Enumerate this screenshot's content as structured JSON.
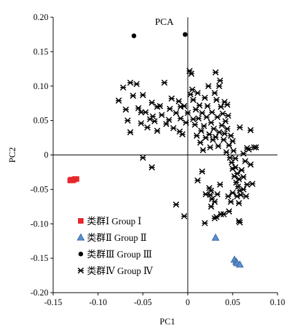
{
  "chart_data": {
    "type": "scatter",
    "title": "PCA",
    "xlabel": "PC1",
    "ylabel": "PC2",
    "xlim": [
      -0.15,
      0.1
    ],
    "ylim": [
      -0.2,
      0.2
    ],
    "x_ticks": [
      -0.15,
      -0.1,
      -0.05,
      0,
      0.05,
      0.1
    ],
    "y_ticks": [
      -0.2,
      -0.15,
      -0.1,
      -0.05,
      0,
      0.05,
      0.1,
      0.15,
      0.2
    ],
    "x_tick_labels": [
      "-0.15",
      "-0.10",
      "-0.05",
      "0",
      "0.05",
      "0.10"
    ],
    "y_tick_labels": [
      "-0.20",
      "-0.15",
      "-0.10",
      "-0.05",
      "0",
      "0.05",
      "0.10",
      "0.15",
      "0.20"
    ],
    "grid": false,
    "legend_position": "lower-left",
    "series": [
      {
        "name": "类群Ⅰ Group Ⅰ",
        "marker": "square",
        "color": "#e8262b",
        "points": [
          [
            -0.131,
            -0.037
          ],
          [
            -0.129,
            -0.036
          ],
          [
            -0.127,
            -0.036
          ],
          [
            -0.125,
            -0.035
          ],
          [
            -0.13,
            -0.036
          ],
          [
            -0.126,
            -0.035
          ],
          [
            -0.128,
            -0.037
          ],
          [
            -0.124,
            -0.035
          ]
        ]
      },
      {
        "name": "类群Ⅱ Group Ⅱ",
        "marker": "triangle",
        "color": "#5b8fd0",
        "points": [
          [
            0.031,
            -0.12
          ],
          [
            0.052,
            -0.152
          ],
          [
            0.054,
            -0.155
          ],
          [
            0.055,
            -0.157
          ],
          [
            0.058,
            -0.159
          ]
        ]
      },
      {
        "name": "类群Ⅲ Group Ⅲ",
        "marker": "circle",
        "color": "#000000",
        "points": [
          [
            -0.06,
            0.173
          ],
          [
            -0.003,
            0.175
          ]
        ]
      },
      {
        "name": "类群Ⅳ Group Ⅳ",
        "marker": "asterisk",
        "color": "#000000",
        "points": [
          [
            -0.077,
            0.079
          ],
          [
            -0.072,
            0.098
          ],
          [
            -0.069,
            0.066
          ],
          [
            -0.064,
            0.105
          ],
          [
            -0.061,
            0.086
          ],
          [
            -0.057,
            0.103
          ],
          [
            -0.055,
            0.068
          ],
          [
            -0.052,
            0.046
          ],
          [
            -0.05,
            0.087
          ],
          [
            -0.047,
            0.062
          ],
          [
            -0.045,
            0.04
          ],
          [
            -0.042,
            0.052
          ],
          [
            -0.04,
            0.076
          ],
          [
            -0.037,
            0.049
          ],
          [
            -0.034,
            0.035
          ],
          [
            -0.031,
            0.071
          ],
          [
            -0.029,
            0.058
          ],
          [
            -0.026,
            0.105
          ],
          [
            -0.024,
            0.045
          ],
          [
            -0.02,
            0.067
          ],
          [
            -0.018,
            0.082
          ],
          [
            -0.016,
            0.039
          ],
          [
            -0.013,
            0.061
          ],
          [
            -0.01,
            0.078
          ],
          [
            -0.008,
            0.053
          ],
          [
            -0.006,
            0.03
          ],
          [
            -0.004,
            0.071
          ],
          [
            -0.002,
            0.047
          ],
          [
            0.0,
            0.061
          ],
          [
            0.002,
            0.122
          ],
          [
            0.004,
            0.118
          ],
          [
            0.005,
            0.095
          ],
          [
            0.006,
            0.08
          ],
          [
            0.008,
            0.044
          ],
          [
            0.009,
            0.066
          ],
          [
            0.01,
            0.028
          ],
          [
            0.011,
            0.09
          ],
          [
            0.012,
            0.053
          ],
          [
            0.013,
            0.072
          ],
          [
            0.014,
            0.018
          ],
          [
            0.015,
            0.035
          ],
          [
            0.016,
            0.061
          ],
          [
            0.017,
            0.007
          ],
          [
            0.018,
            0.042
          ],
          [
            0.019,
            0.083
          ],
          [
            0.02,
            0.025
          ],
          [
            0.021,
            0.055
          ],
          [
            0.022,
            0.071
          ],
          [
            0.023,
            0.1
          ],
          [
            0.024,
            0.03
          ],
          [
            0.025,
            0.011
          ],
          [
            0.026,
            0.047
          ],
          [
            0.027,
            0.062
          ],
          [
            0.028,
            0.022
          ],
          [
            0.029,
            0.038
          ],
          [
            0.03,
            0.09
          ],
          [
            0.031,
            0.12
          ],
          [
            0.032,
            0.08
          ],
          [
            0.033,
            0.055
          ],
          [
            0.034,
            0.013
          ],
          [
            0.035,
            0.033
          ],
          [
            0.036,
            0.108
          ],
          [
            0.037,
            0.07
          ],
          [
            0.038,
            0.043
          ],
          [
            0.039,
            0.06
          ],
          [
            0.04,
            0.022
          ],
          [
            0.041,
            0.077
          ],
          [
            0.042,
            0.049
          ],
          [
            0.043,
            0.004
          ],
          [
            0.044,
            0.038
          ],
          [
            0.045,
            0.057
          ],
          [
            0.046,
            0.014
          ],
          [
            0.047,
            -0.004
          ],
          [
            0.048,
            0.028
          ],
          [
            0.049,
            -0.011
          ],
          [
            0.05,
            -0.02
          ],
          [
            0.051,
            0.006
          ],
          [
            0.052,
            -0.031
          ],
          [
            0.053,
            -0.018
          ],
          [
            0.054,
            -0.04
          ],
          [
            0.055,
            -0.027
          ],
          [
            0.056,
            -0.046
          ],
          [
            0.057,
            -0.035
          ],
          [
            0.058,
            -0.052
          ],
          [
            0.059,
            -0.058
          ],
          [
            0.06,
            -0.022
          ],
          [
            0.062,
            -0.032
          ],
          [
            0.064,
            -0.009
          ],
          [
            0.066,
            -0.043
          ],
          [
            0.068,
            0.008
          ],
          [
            0.07,
            -0.014
          ],
          [
            0.072,
            -0.042
          ],
          [
            0.074,
            0.011
          ],
          [
            0.076,
            0.011
          ],
          [
            0.07,
            0.036
          ],
          [
            0.066,
            0.01
          ],
          [
            0.062,
            0.002
          ],
          [
            0.058,
            0.04
          ],
          [
            0.053,
            -0.005
          ],
          [
            0.05,
            0.02
          ],
          [
            0.024,
            -0.048
          ],
          [
            0.026,
            -0.052
          ],
          [
            0.025,
            -0.058
          ],
          [
            0.027,
            -0.064
          ],
          [
            0.026,
            -0.075
          ],
          [
            0.03,
            -0.068
          ],
          [
            0.033,
            -0.057
          ],
          [
            0.036,
            -0.043
          ],
          [
            0.037,
            -0.086
          ],
          [
            0.04,
            -0.086
          ],
          [
            0.045,
            -0.06
          ],
          [
            0.048,
            -0.068
          ],
          [
            0.05,
            -0.055
          ],
          [
            0.046,
            -0.082
          ],
          [
            0.055,
            -0.06
          ],
          [
            0.057,
            -0.07
          ],
          [
            0.062,
            -0.05
          ],
          [
            0.065,
            -0.06
          ],
          [
            0.057,
            -0.096
          ],
          [
            0.058,
            -0.098
          ],
          [
            0.03,
            -0.092
          ],
          [
            0.032,
            -0.09
          ],
          [
            0.019,
            -0.099
          ],
          [
            -0.013,
            -0.072
          ],
          [
            -0.004,
            -0.089
          ],
          [
            0.016,
            -0.024
          ],
          [
            0.011,
            -0.037
          ],
          [
            0.02,
            -0.057
          ],
          [
            -0.04,
            -0.018
          ],
          [
            -0.05,
            -0.004
          ],
          [
            -0.064,
            0.033
          ],
          [
            -0.067,
            0.05
          ],
          [
            -0.052,
            0.062
          ],
          [
            -0.039,
            0.056
          ],
          [
            -0.034,
            0.07
          ],
          [
            -0.021,
            0.051
          ],
          [
            -0.009,
            0.034
          ],
          [
            -0.008,
            0.07
          ],
          [
            0.003,
            0.088
          ],
          [
            0.006,
            0.052
          ],
          [
            0.031,
            0.026
          ],
          [
            0.044,
            0.073
          ],
          [
            0.041,
            0.031
          ],
          [
            0.035,
            0.1
          ]
        ]
      }
    ]
  }
}
